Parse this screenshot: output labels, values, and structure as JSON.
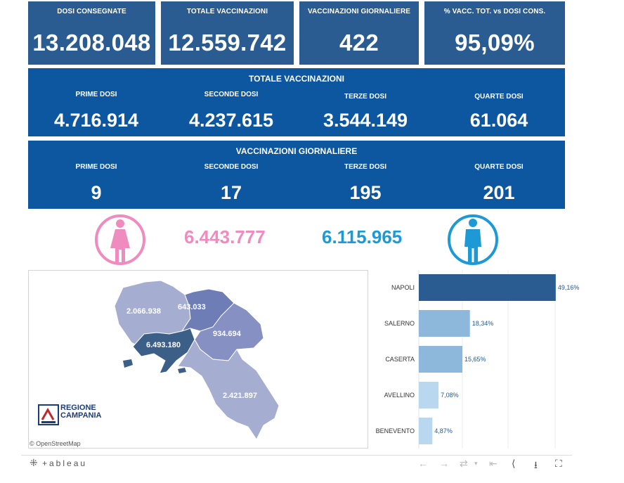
{
  "kpis": [
    {
      "label": "DOSI  CONSEGNATE",
      "value": "13.208.048"
    },
    {
      "label": "TOTALE VACCINAZIONI",
      "value": "12.559.742"
    },
    {
      "label": "VACCINAZIONI GIORNALIERE",
      "value": "422"
    },
    {
      "label": "% VACC. TOT. vs DOSI CONS.",
      "value": "95,09%"
    }
  ],
  "totale": {
    "title": "TOTALE VACCINAZIONI",
    "cols": [
      {
        "label": "PRIME DOSI",
        "value": "4.716.914"
      },
      {
        "label": "SECONDE DOSI",
        "value": "4.237.615"
      },
      {
        "label": "TERZE DOSI",
        "value": "3.544.149"
      },
      {
        "label": "QUARTE DOSI",
        "value": "61.064"
      }
    ]
  },
  "giornaliere": {
    "title": "VACCINAZIONI GIORNALIERE",
    "cols": [
      {
        "label": "PRIME DOSI",
        "value": "9"
      },
      {
        "label": "SECONDE DOSI",
        "value": "17"
      },
      {
        "label": "TERZE DOSI",
        "value": "195"
      },
      {
        "label": "QUARTE DOSI",
        "value": "201"
      }
    ]
  },
  "gender": {
    "female_value": "6.443.777",
    "male_value": "6.115.965",
    "female_color": "#f08bbf",
    "male_color": "#1d9ad6"
  },
  "map": {
    "region_values": {
      "caserta": "2.066.938",
      "benevento": "643.033",
      "avellino": "934.694",
      "napoli": "6.493.180",
      "salerno": "2.421.897"
    },
    "attribution": "© OpenStreetMap",
    "logo_line1": "REGIONE",
    "logo_line2": "CAMPANIA"
  },
  "chart_data": {
    "type": "bar",
    "orientation": "horizontal",
    "categories": [
      "NAPOLI",
      "SALERNO",
      "CASERTA",
      "AVELLINO",
      "BENEVENTO"
    ],
    "values": [
      49.16,
      18.34,
      15.65,
      7.08,
      4.87
    ],
    "labels": [
      "49,16%",
      "18,34%",
      "15,65%",
      "7,08%",
      "4,87%"
    ],
    "xlim": [
      0,
      55
    ],
    "colors": [
      "#2a5c92",
      "#8db8dc",
      "#8db8dc",
      "#b9d7ef",
      "#b9d7ef"
    ]
  },
  "toolbar": {
    "brand": "+ableau"
  }
}
